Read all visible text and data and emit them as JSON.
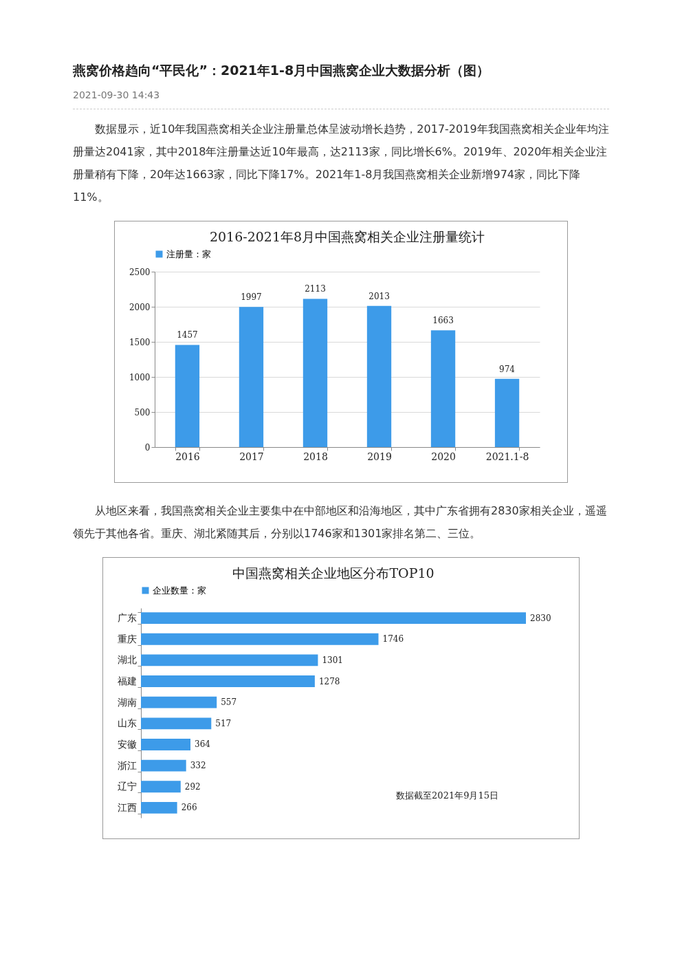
{
  "chart_data": [
    {
      "type": "other",
      "title": "燕窝价格趋向“平民化”：2021年1-8月中国燕窝企业大数据分析（图）",
      "subtitle": "2021-09-30 14:43",
      "annotations": [
        "数据显示，近10年我国燕窝相关企业注册量总体呈波动增长趋势，2017-2019年我国燕窝相关企业年均注册量达2041家，其中2018年注册量达近10年最高，达2113家，同比增长6%。2019年、2020年相关企业注册量稍有下降，20年达1663家，同比下降17%。2021年1-8月我国燕窝相关企业新增974家，同比下降11%。"
      ]
    },
    {
      "type": "bar",
      "title": "2016-2021年8月中国燕窝相关企业注册量统计",
      "categories": [
        "2016",
        "2017",
        "2018",
        "2019",
        "2020",
        "2021.1-8"
      ],
      "series": [
        {
          "name": "注册量：家",
          "color": "#3d9be9",
          "values": [
            1457,
            1997,
            2113,
            2013,
            1663,
            974
          ]
        }
      ],
      "ylim": [
        0,
        2500
      ],
      "yticks": [
        0,
        500,
        1000,
        1500,
        2000,
        2500
      ],
      "grid": "y",
      "legend": "top",
      "data_labels": true
    },
    {
      "type": "other",
      "annotations": [
        "从地区来看，我国燕窝相关企业主要集中在中部地区和沿海地区，其中广东省拥有2830家相关企业，遥遥领先于其他各省。重庆、湖北紧随其后，分别以1746家和1301家排名第二、三位。"
      ]
    },
    {
      "type": "bar",
      "orientation": "horizontal",
      "title": "中国燕窝相关企业地区分布TOP10",
      "categories": [
        "广东",
        "重庆",
        "湖北",
        "福建",
        "湖南",
        "山东",
        "安徽",
        "浙江",
        "辽宁",
        "江西"
      ],
      "series": [
        {
          "name": "企业数量：家",
          "color": "#3d9be9",
          "values": [
            2830,
            1746,
            1301,
            1278,
            557,
            517,
            364,
            332,
            292,
            266
          ]
        }
      ],
      "tick_labels": "y",
      "legend": "top",
      "data_labels": true,
      "grid": false,
      "annotations": [
        "数据截至2021年9月15日"
      ]
    }
  ]
}
